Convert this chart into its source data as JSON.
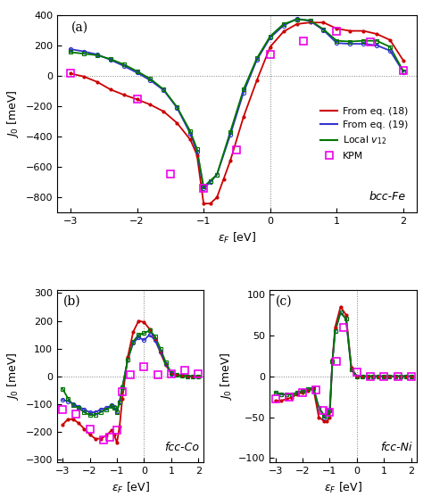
{
  "colors": {
    "eq18": "#cc0000",
    "eq19": "#3333cc",
    "local": "#007700",
    "kpm": "#ee00ee"
  },
  "bcc_fe": {
    "title": "bcc-Fe",
    "panel": "(a)",
    "ylim": [
      -900,
      400
    ],
    "yticks": [
      -800,
      -600,
      -400,
      -200,
      0,
      200,
      400
    ],
    "xlim": [
      -3.2,
      2.2
    ],
    "ylabel": "$J_0$ [meV]",
    "xlabel": "$\\varepsilon_F$ [eV]",
    "eq18_x": [
      -3.0,
      -2.8,
      -2.6,
      -2.4,
      -2.2,
      -2.0,
      -1.8,
      -1.6,
      -1.4,
      -1.2,
      -1.1,
      -1.0,
      -0.9,
      -0.8,
      -0.7,
      -0.6,
      -0.4,
      -0.2,
      0.0,
      0.2,
      0.4,
      0.6,
      0.8,
      1.0,
      1.2,
      1.4,
      1.6,
      1.8,
      2.0
    ],
    "eq18_y": [
      15,
      -5,
      -40,
      -90,
      -125,
      -155,
      -190,
      -235,
      -310,
      -420,
      -520,
      -840,
      -840,
      -800,
      -680,
      -560,
      -270,
      -30,
      190,
      290,
      340,
      350,
      350,
      310,
      295,
      295,
      275,
      235,
      100
    ],
    "eq19_x": [
      -3.0,
      -2.8,
      -2.6,
      -2.4,
      -2.2,
      -2.0,
      -1.8,
      -1.6,
      -1.4,
      -1.2,
      -1.1,
      -1.0,
      -0.9,
      -0.8,
      -0.6,
      -0.4,
      -0.2,
      0.0,
      0.2,
      0.4,
      0.6,
      0.8,
      1.0,
      1.2,
      1.4,
      1.6,
      1.8,
      2.0
    ],
    "eq19_y": [
      175,
      160,
      140,
      105,
      65,
      20,
      -30,
      -95,
      -210,
      -380,
      -500,
      -740,
      -700,
      -650,
      -390,
      -110,
      105,
      250,
      330,
      375,
      360,
      300,
      215,
      210,
      210,
      200,
      165,
      25
    ],
    "local_x": [
      -3.0,
      -2.8,
      -2.6,
      -2.4,
      -2.2,
      -2.0,
      -1.8,
      -1.6,
      -1.4,
      -1.2,
      -1.1,
      -1.0,
      -0.9,
      -0.8,
      -0.6,
      -0.4,
      -0.2,
      0.0,
      0.2,
      0.4,
      0.6,
      0.8,
      1.0,
      1.2,
      1.4,
      1.6,
      1.8,
      2.0
    ],
    "local_y": [
      155,
      145,
      135,
      110,
      75,
      30,
      -20,
      -90,
      -205,
      -365,
      -480,
      -730,
      -690,
      -650,
      -370,
      -90,
      115,
      260,
      340,
      370,
      365,
      305,
      230,
      225,
      230,
      230,
      190,
      30
    ],
    "kpm_x": [
      -3.0,
      -2.0,
      -1.5,
      -1.0,
      -0.5,
      0.0,
      0.5,
      1.0,
      1.5,
      2.0
    ],
    "kpm_y": [
      15,
      -155,
      -645,
      -740,
      -490,
      140,
      230,
      290,
      225,
      35
    ]
  },
  "fcc_co": {
    "title": "fcc-Co",
    "panel": "(b)",
    "ylim": [
      -310,
      310
    ],
    "yticks": [
      -300,
      -200,
      -100,
      0,
      100,
      200,
      300
    ],
    "xlim": [
      -3.2,
      2.2
    ],
    "ylabel": "$J_0$ [meV]",
    "xlabel": "$\\varepsilon_F$ [eV]",
    "eq18_x": [
      -3.0,
      -2.8,
      -2.6,
      -2.4,
      -2.2,
      -2.0,
      -1.8,
      -1.6,
      -1.4,
      -1.2,
      -1.1,
      -1.0,
      -0.9,
      -0.8,
      -0.6,
      -0.4,
      -0.2,
      0.0,
      0.2,
      0.4,
      0.6,
      0.8,
      1.0,
      1.2,
      1.4,
      1.6,
      1.8,
      2.0
    ],
    "eq18_y": [
      -175,
      -155,
      -155,
      -170,
      -190,
      -210,
      -225,
      -225,
      -215,
      -195,
      -210,
      -240,
      -180,
      -80,
      70,
      160,
      200,
      195,
      170,
      135,
      85,
      40,
      10,
      5,
      2,
      0,
      0,
      0
    ],
    "eq19_x": [
      -3.0,
      -2.8,
      -2.6,
      -2.4,
      -2.2,
      -2.0,
      -1.8,
      -1.6,
      -1.4,
      -1.2,
      -1.1,
      -1.0,
      -0.9,
      -0.8,
      -0.6,
      -0.4,
      -0.2,
      0.0,
      0.2,
      0.4,
      0.6,
      0.8,
      1.0,
      1.2,
      1.4,
      1.6,
      1.8,
      2.0
    ],
    "eq19_y": [
      -85,
      -90,
      -100,
      -110,
      -120,
      -130,
      -130,
      -120,
      -115,
      -105,
      -110,
      -125,
      -90,
      -40,
      60,
      120,
      140,
      130,
      150,
      130,
      90,
      45,
      10,
      5,
      2,
      0,
      0,
      0
    ],
    "local_x": [
      -3.0,
      -2.8,
      -2.6,
      -2.4,
      -2.2,
      -2.0,
      -1.8,
      -1.6,
      -1.4,
      -1.2,
      -1.1,
      -1.0,
      -0.9,
      -0.8,
      -0.6,
      -0.4,
      -0.2,
      0.0,
      0.2,
      0.4,
      0.6,
      0.8,
      1.0,
      1.2,
      1.4,
      1.6,
      1.8,
      2.0
    ],
    "local_y": [
      -45,
      -80,
      -105,
      -115,
      -130,
      -140,
      -140,
      -130,
      -120,
      -108,
      -115,
      -130,
      -95,
      -40,
      60,
      125,
      150,
      155,
      165,
      145,
      100,
      50,
      12,
      5,
      2,
      0,
      0,
      0
    ],
    "kpm_x": [
      -3.0,
      -2.5,
      -2.0,
      -1.5,
      -1.25,
      -1.0,
      -0.8,
      -0.5,
      0.0,
      0.5,
      1.0,
      1.5,
      2.0
    ],
    "kpm_y": [
      -120,
      -135,
      -190,
      -230,
      -220,
      -195,
      -55,
      5,
      35,
      5,
      10,
      20,
      10
    ]
  },
  "fcc_ni": {
    "title": "fcc-Ni",
    "panel": "(c)",
    "ylim": [
      -105,
      105
    ],
    "yticks": [
      -100,
      -50,
      0,
      50,
      100
    ],
    "xlim": [
      -3.2,
      2.2
    ],
    "ylabel": "$J_0$ [meV]",
    "xlabel": "$\\varepsilon_F$ [eV]",
    "eq18_x": [
      -3.0,
      -2.8,
      -2.6,
      -2.4,
      -2.2,
      -2.0,
      -1.8,
      -1.6,
      -1.4,
      -1.2,
      -1.1,
      -1.0,
      -0.9,
      -0.8,
      -0.6,
      -0.4,
      -0.2,
      0.0,
      0.2,
      0.4,
      0.6,
      0.8,
      1.0,
      1.2,
      1.4,
      1.6,
      1.8,
      2.0
    ],
    "eq18_y": [
      -30,
      -30,
      -28,
      -26,
      -22,
      -20,
      -18,
      -15,
      -50,
      -55,
      -55,
      -50,
      20,
      60,
      85,
      75,
      10,
      0,
      0,
      0,
      0,
      0,
      0,
      0,
      0,
      0,
      0,
      0
    ],
    "eq19_x": [
      -3.0,
      -2.8,
      -2.6,
      -2.4,
      -2.2,
      -2.0,
      -1.8,
      -1.6,
      -1.4,
      -1.2,
      -1.1,
      -1.0,
      -0.9,
      -0.8,
      -0.6,
      -0.4,
      -0.2,
      0.0,
      0.2,
      0.4,
      0.6,
      0.8,
      1.0,
      1.2,
      1.4,
      1.6,
      1.8,
      2.0
    ],
    "eq19_y": [
      -20,
      -22,
      -22,
      -22,
      -20,
      -18,
      -16,
      -14,
      -38,
      -50,
      -48,
      -42,
      18,
      55,
      78,
      70,
      8,
      0,
      0,
      0,
      0,
      0,
      0,
      0,
      0,
      0,
      0,
      0
    ],
    "local_x": [
      -3.0,
      -2.8,
      -2.6,
      -2.4,
      -2.2,
      -2.0,
      -1.8,
      -1.6,
      -1.4,
      -1.2,
      -1.1,
      -1.0,
      -0.9,
      -0.8,
      -0.6,
      -0.4,
      -0.2,
      0.0,
      0.2,
      0.4,
      0.6,
      0.8,
      1.0,
      1.2,
      1.4,
      1.6,
      1.8,
      2.0
    ],
    "local_y": [
      -20,
      -22,
      -22,
      -22,
      -20,
      -18,
      -16,
      -14,
      -38,
      -48,
      -48,
      -42,
      18,
      55,
      78,
      70,
      8,
      0,
      0,
      0,
      0,
      0,
      0,
      0,
      0,
      0,
      0,
      0
    ],
    "kpm_x": [
      -3.0,
      -2.5,
      -2.0,
      -1.5,
      -1.25,
      -1.0,
      -0.75,
      -0.5,
      0.0,
      0.5,
      1.0,
      1.5,
      2.0
    ],
    "kpm_y": [
      -28,
      -25,
      -20,
      -17,
      -42,
      -44,
      18,
      60,
      5,
      0,
      0,
      0,
      0
    ]
  },
  "legend_labels": [
    "From eq. (18)",
    "From eq. (19)",
    "Local $v_{12}$",
    "KPM"
  ]
}
